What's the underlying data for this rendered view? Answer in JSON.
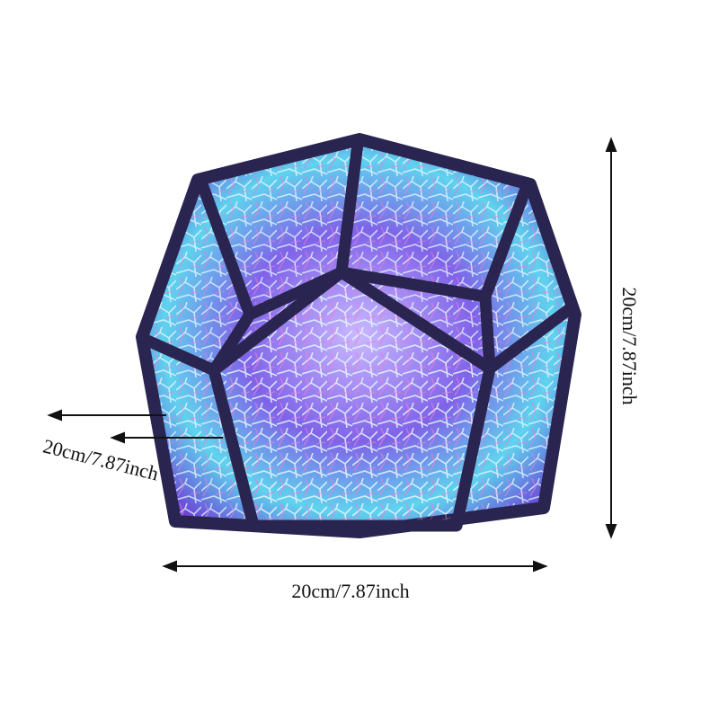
{
  "product": {
    "colors": {
      "frame": "#2a2550",
      "glow_cyan": "#5fe0f0",
      "glow_purple": "#8a5cf0",
      "glow_pink": "#e07ad8",
      "glow_white": "#e8f4ff"
    }
  },
  "dimensions": {
    "height_label": "20cm/7.87inch",
    "width_label": "20cm/7.87inch",
    "depth_label": "20cm/7.87inch"
  }
}
